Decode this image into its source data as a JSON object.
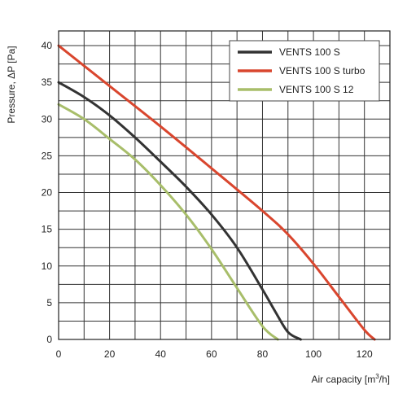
{
  "chart_data": {
    "type": "line",
    "xlabel": "Air capacity [m",
    "xlabel_sup": "3",
    "xlabel_suffix": "/h]",
    "ylabel": "Pressure, ΔP [Pa]",
    "xlim": [
      0,
      130
    ],
    "ylim": [
      0,
      42
    ],
    "x_ticks": [
      0,
      20,
      40,
      60,
      80,
      100,
      120
    ],
    "y_ticks": [
      0,
      5,
      10,
      15,
      20,
      25,
      30,
      35,
      40
    ],
    "x_grid_step": 10,
    "y_grid_step": 2.5,
    "grid": true,
    "legend_position": "top-right",
    "series": [
      {
        "name": "VENTS 100 S",
        "color": "#333333",
        "x": [
          0,
          10,
          20,
          30,
          40,
          50,
          60,
          70,
          80,
          85,
          90,
          95
        ],
        "y": [
          35,
          33,
          30.5,
          27.5,
          24.2,
          20.8,
          17,
          12.5,
          6.8,
          3.8,
          1,
          0
        ]
      },
      {
        "name": "VENTS 100 S turbo",
        "color": "#d9462e",
        "x": [
          0,
          20,
          40,
          60,
          80,
          90,
          100,
          110,
          120,
          124
        ],
        "y": [
          40,
          34.5,
          29,
          23.3,
          17.5,
          14.3,
          10.3,
          5.8,
          1.3,
          0
        ]
      },
      {
        "name": "VENTS 100 S 12",
        "color": "#a8be6a",
        "x": [
          0,
          10,
          20,
          30,
          40,
          50,
          60,
          70,
          80,
          86
        ],
        "y": [
          32,
          30,
          27.3,
          24.5,
          21,
          17,
          12.3,
          7,
          1.8,
          0
        ]
      }
    ]
  }
}
